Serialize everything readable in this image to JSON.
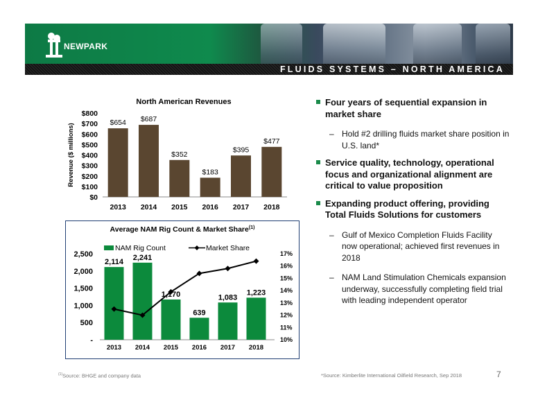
{
  "header": {
    "title": "FLUIDS SYSTEMS – NORTH AMERICA",
    "logo_text": "NEWPARK"
  },
  "bullets": [
    {
      "text": "Four years of sequential expansion in market share",
      "subs": [
        "Hold #2 drilling fluids market share position in U.S. land*"
      ]
    },
    {
      "text": "Service quality, technology, operational focus and organizational alignment are critical to value proposition",
      "subs": []
    },
    {
      "text": "Expanding product offering, providing Total Fluids Solutions for customers",
      "subs": [
        "Gulf of Mexico Completion Fluids Facility now operational; achieved first revenues in 2018",
        "NAM Land Stimulation Chemicals expansion underway, successfully completing field trial with leading independent operator"
      ]
    }
  ],
  "footer": {
    "left_sup": "(1)",
    "left": "Source:  BHGE and company data",
    "right": "*Source:  Kimberlite International Oilfield Research, Sep 2018",
    "page": "7"
  },
  "colors": {
    "bar_revenue": "#5a4630",
    "bar_rig": "#0c8a3c",
    "line": "#000000",
    "frame": "#1f3e73",
    "accent": "#1a8a4a"
  },
  "chart_data": [
    {
      "type": "bar",
      "title": "North American Revenues",
      "ylabel": "Revenue ($ millions)",
      "categories": [
        "2013",
        "2014",
        "2015",
        "2016",
        "2017",
        "2018"
      ],
      "values": [
        654,
        687,
        352,
        183,
        395,
        477
      ],
      "data_labels": [
        "$654",
        "$687",
        "$352",
        "$183",
        "$395",
        "$477"
      ],
      "y_ticks": [
        "$0",
        "$100",
        "$200",
        "$300",
        "$400",
        "$500",
        "$600",
        "$700",
        "$800"
      ],
      "ylim": [
        0,
        800
      ],
      "grid": false,
      "legend": "none"
    },
    {
      "type": "bar",
      "title": "Average NAM Rig Count & Market Share",
      "title_sup": "(1)",
      "categories": [
        "2013",
        "2014",
        "2015",
        "2016",
        "2017",
        "2018"
      ],
      "series": [
        {
          "name": "NAM Rig Count",
          "type": "bar",
          "axis": "left",
          "values": [
            2114,
            2241,
            1170,
            639,
            1083,
            1223
          ],
          "data_labels": [
            "2,114",
            "2,241",
            "1,170",
            "639",
            "1,083",
            "1,223"
          ]
        },
        {
          "name": "Market Share",
          "type": "line",
          "axis": "right",
          "values": [
            12.5,
            12.0,
            13.9,
            15.4,
            15.8,
            16.4
          ]
        }
      ],
      "y_left_ticks": [
        "-",
        "500",
        "1,000",
        "1,500",
        "2,000",
        "2,500"
      ],
      "ylim_left": [
        0,
        2500
      ],
      "y_right_ticks": [
        "10%",
        "11%",
        "12%",
        "13%",
        "14%",
        "15%",
        "16%",
        "17%"
      ],
      "ylim_right": [
        10,
        17
      ],
      "grid": false,
      "legend": "top"
    }
  ]
}
